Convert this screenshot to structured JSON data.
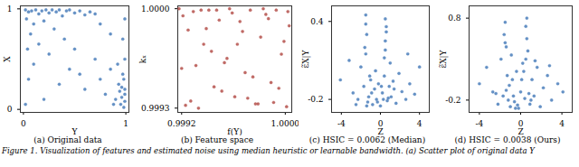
{
  "chart_data": [
    {
      "type": "scatter",
      "title": "(a) Original data",
      "x_label": "Y",
      "y_label": "X",
      "color": "#4a7ebb",
      "marker": "circle",
      "xlim": [
        -0.03,
        1.03
      ],
      "ylim": [
        -0.03,
        1.03
      ],
      "xticks": [
        0,
        1
      ],
      "yticks": [
        0,
        1
      ],
      "x": [
        0.02,
        0.05,
        0.08,
        0.12,
        0.15,
        0.18,
        0.22,
        0.25,
        0.28,
        0.32,
        0.35,
        0.38,
        0.42,
        0.45,
        0.5,
        0.55,
        0.6,
        0.65,
        0.03,
        0.1,
        0.07,
        0.2,
        0.3,
        0.04,
        0.15,
        0.1,
        0.25,
        0.05,
        0.4,
        0.5,
        0.45,
        0.35,
        0.55,
        0.6,
        0.7,
        0.75,
        0.8,
        0.85,
        0.9,
        0.95,
        0.98,
        0.99,
        0.97,
        0.93,
        0.99,
        0.96,
        0.88,
        0.99,
        0.92,
        0.2,
        0.02,
        0.75,
        0.85,
        0.97,
        0.7,
        0.99,
        0.98,
        0.96,
        0.99,
        0.94
      ],
      "values": [
        0.99,
        0.97,
        0.98,
        0.99,
        0.95,
        0.98,
        0.99,
        0.96,
        0.99,
        0.97,
        0.99,
        0.93,
        0.98,
        0.99,
        0.96,
        0.98,
        0.94,
        0.97,
        0.9,
        0.85,
        0.75,
        0.88,
        0.8,
        0.6,
        0.65,
        0.45,
        0.55,
        0.3,
        0.7,
        0.6,
        0.4,
        0.25,
        0.35,
        0.2,
        0.5,
        0.3,
        0.15,
        0.4,
        0.1,
        0.05,
        0.02,
        0.2,
        0.35,
        0.25,
        0.5,
        0.12,
        0.05,
        0.08,
        0.45,
        0.1,
        0.05,
        0.85,
        0.75,
        0.7,
        0.95,
        0.9,
        0.3,
        0.22,
        0.15,
        0.18
      ]
    },
    {
      "type": "scatter",
      "title": "(b) Feature space",
      "x_label": "f(Y)",
      "y_label": "kₓ",
      "color": "#b5504b",
      "marker": "circle",
      "xlim": [
        0.99917,
        1.00005
      ],
      "ylim": [
        0.99927,
        1.00002
      ],
      "xticks": [
        0.9992,
        {
          "value": 1,
          "label": "1.0000"
        }
      ],
      "yticks": [
        0.9993,
        {
          "value": 1,
          "label": "1.0000"
        }
      ],
      "x": [
        0.99918,
        0.99921,
        0.99925,
        0.99929,
        0.99933,
        0.99937,
        0.99941,
        0.99945,
        0.99949,
        0.99953,
        0.99957,
        0.99961,
        0.99965,
        0.99969,
        0.99973,
        0.99977,
        0.99981,
        0.99985,
        0.99989,
        0.99993,
        0.99997,
        1.00001,
        1.00003,
        0.9992,
        0.99927,
        0.99935,
        0.99943,
        0.99951,
        0.99959,
        0.99967,
        0.99975,
        0.99983,
        0.99991,
        0.99999,
        1.00002,
        0.99923,
        0.99939,
        0.99955,
        0.99971,
        0.99987,
        0.99995,
        0.99931,
        0.99947,
        0.99963,
        0.99979
      ],
      "values": [
        1.0,
        0.99995,
        0.99985,
        0.99998,
        0.9993,
        0.99975,
        0.99999,
        0.99945,
        0.99992,
        0.99962,
        1.0,
        0.99938,
        0.99991,
        0.99955,
        0.99999,
        0.99933,
        0.9998,
        0.99996,
        0.99948,
        0.99999,
        0.99968,
        0.99931,
        0.99988,
        0.99958,
        0.99935,
        0.99999,
        0.9997,
        0.99942,
        0.99997,
        0.99984,
        0.99952,
        1.0,
        0.99934,
        0.99977,
        0.99998,
        0.99932,
        0.99986,
        0.99965,
        0.99937,
        0.99993,
        0.99944,
        0.9996,
        0.99999,
        0.99975,
        0.99933
      ]
    },
    {
      "type": "scatter",
      "title": "(c) HSIC = 0.0062 (Median)",
      "x_label": "Z",
      "y_label": "ε̃X|Y",
      "color": "#4a7ebb",
      "marker": "circle",
      "xlim": [
        -5,
        5
      ],
      "ylim": [
        -0.3,
        0.52
      ],
      "xticks": [
        -4,
        0,
        4
      ],
      "yticks": [
        -0.2,
        0.4
      ],
      "x": [
        -4.1,
        -3.2,
        -2.8,
        -2.3,
        -2.0,
        -1.7,
        -1.5,
        -1.4,
        -1.6,
        -1.5,
        -1.3,
        -1.2,
        -1.0,
        -0.8,
        -0.6,
        -0.4,
        -0.2,
        0.0,
        0.2,
        0.4,
        0.5,
        0.6,
        0.5,
        0.4,
        0.7,
        0.9,
        1.1,
        1.3,
        1.6,
        1.9,
        2.2,
        2.6,
        3.0,
        3.5,
        4.0,
        -0.9,
        -0.3,
        0.1,
        0.8,
        1.4,
        -1.1,
        -0.5,
        0.3,
        1.0,
        -2.5,
        2.8,
        -1.5,
        0.5,
        -1.4,
        0.6
      ],
      "values": [
        -0.05,
        0.1,
        -0.15,
        -0.2,
        0.05,
        -0.1,
        0.45,
        0.3,
        0.2,
        0.38,
        -0.22,
        -0.18,
        -0.05,
        -0.24,
        -0.12,
        -0.2,
        -0.08,
        -0.25,
        -0.15,
        -0.02,
        0.42,
        0.32,
        0.25,
        0.12,
        -0.21,
        -0.1,
        -0.18,
        -0.06,
        -0.23,
        0.0,
        -0.14,
        -0.2,
        -0.08,
        -0.16,
        0.05,
        -0.15,
        -0.22,
        -0.1,
        -0.19,
        -0.12,
        -0.02,
        0.02,
        -0.2,
        0.08,
        -0.24,
        0.15,
        0.15,
        0.18,
        -0.25,
        0.36
      ]
    },
    {
      "type": "scatter",
      "title": "(d) HSIC = 0.0038 (Ours)",
      "x_label": "Z",
      "y_label": "ε̃X|Y",
      "color": "#4a7ebb",
      "marker": "circle",
      "xlim": [
        -5,
        5
      ],
      "ylim": [
        -0.35,
        0.95
      ],
      "xticks": [
        -4,
        0,
        4
      ],
      "yticks": [
        -0.2,
        0.8
      ],
      "x": [
        -4.0,
        -3.3,
        -2.7,
        -2.2,
        -1.9,
        -1.6,
        -1.5,
        -1.4,
        -1.3,
        -1.2,
        -1.0,
        -0.8,
        -0.6,
        -0.4,
        -0.2,
        0.0,
        0.2,
        0.4,
        0.5,
        0.6,
        0.7,
        0.9,
        1.1,
        1.3,
        1.6,
        1.9,
        2.2,
        2.6,
        3.0,
        3.6,
        4.1,
        -1.7,
        -0.9,
        -0.3,
        0.1,
        0.8,
        1.4,
        -1.1,
        -0.5,
        0.3,
        1.0,
        -2.4,
        2.8,
        -1.5,
        0.6,
        -1.4,
        0.5,
        -0.7
      ],
      "values": [
        0.0,
        0.2,
        -0.1,
        -0.25,
        0.3,
        0.6,
        0.75,
        0.45,
        0.1,
        -0.2,
        -0.28,
        0.05,
        -0.22,
        0.15,
        -0.3,
        -0.1,
        0.25,
        -0.18,
        0.7,
        0.55,
        0.4,
        -0.25,
        0.05,
        -0.15,
        0.2,
        -0.28,
        -0.05,
        0.1,
        -0.2,
        0.0,
        -0.1,
        -0.15,
        0.35,
        -0.26,
        0.05,
        -0.12,
        0.28,
        -0.02,
        -0.3,
        0.15,
        -0.2,
        -0.12,
        0.22,
        0.5,
        0.8,
        -0.08,
        0.3,
        -0.15
      ]
    }
  ],
  "caption": "Figure 1. Visualization of features and estimated noise using median heuristic or learnable bandwidth. (a) Scatter plot of original data Y"
}
